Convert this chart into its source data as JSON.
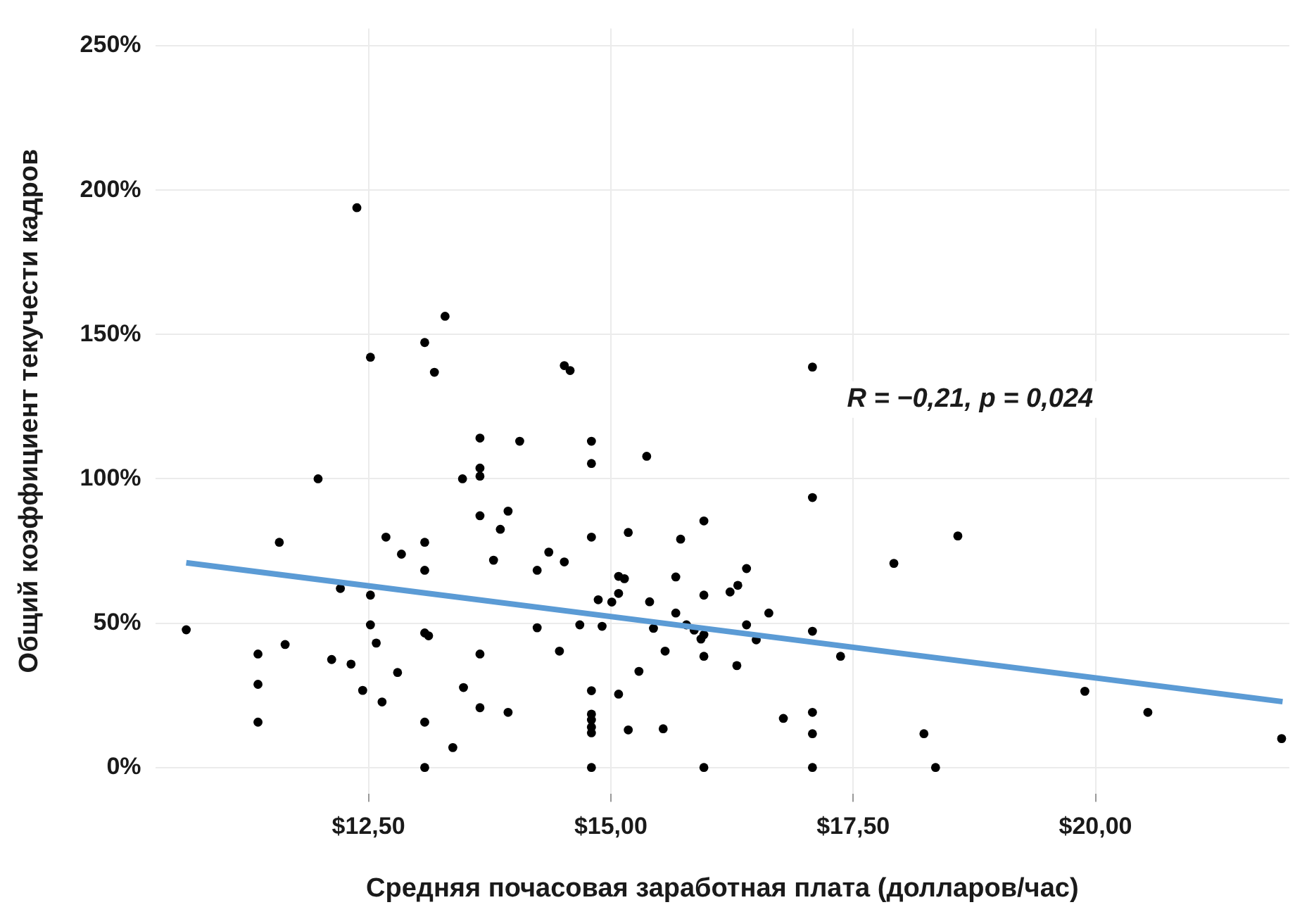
{
  "chart_data": {
    "type": "scatter",
    "xlabel": "Средняя почасовая заработная плата (долларов/час)",
    "ylabel": "Общий коэффициент текучести кадров",
    "annotations": [
      "R = −0,21, p = 0,024"
    ],
    "xlim": [
      10.3,
      22.0
    ],
    "ylim": [
      -9,
      256
    ],
    "xticks": [
      {
        "value": 12.5,
        "label": "$12,50"
      },
      {
        "value": 15,
        "label": "$15,00"
      },
      {
        "value": 17.5,
        "label": "$17,50"
      },
      {
        "value": 20,
        "label": "$20,00"
      }
    ],
    "yticks": [
      {
        "value": 0,
        "label": "0%"
      },
      {
        "value": 50,
        "label": "50%"
      },
      {
        "value": 100,
        "label": "100%"
      },
      {
        "value": 150,
        "label": "150%"
      },
      {
        "value": 200,
        "label": "200%"
      },
      {
        "value": 250,
        "label": "250%"
      }
    ],
    "grid": true,
    "marker": "circle",
    "series": [
      {
        "color": "#000000",
        "x": [
          12.38,
          13.29,
          13.08,
          12.52,
          13.18,
          13.65,
          14.06,
          13.65,
          13.65,
          11.98,
          13.47,
          14.52,
          14.58,
          17.08,
          14.8,
          14.8,
          15.37,
          11.58,
          12.68,
          13.08,
          12.84,
          13.08,
          13.65,
          13.94,
          13.86,
          13.79,
          14.24,
          14.36,
          10.62,
          11.36,
          11.36,
          11.36,
          11.64,
          12.21,
          12.52,
          12.52,
          12.58,
          12.12,
          12.32,
          12.8,
          12.44,
          12.64,
          13.08,
          13.12,
          13.08,
          13.08,
          13.37,
          13.65,
          13.48,
          13.65,
          13.94,
          14.24,
          15.96,
          14.8,
          15.18,
          15.72,
          14.52,
          15.67,
          15.08,
          15.14,
          15.08,
          14.87,
          15.01,
          15.4,
          15.96,
          16.23,
          16.31,
          16.4,
          17.08,
          17.92,
          14.68,
          14.91,
          14.47,
          15.44,
          15.67,
          15.78,
          15.86,
          15.96,
          15.93,
          15.56,
          15.96,
          16.4,
          16.63,
          16.5,
          16.3,
          17.08,
          17.37,
          15.29,
          14.8,
          15.08,
          14.8,
          14.8,
          14.8,
          14.8,
          15.18,
          15.54,
          16.78,
          17.08,
          17.08,
          18.23,
          14.8,
          15.96,
          17.08,
          18.58,
          18.35,
          19.89,
          20.54,
          21.92
        ],
        "values": [
          193.9,
          156.3,
          147.2,
          142.1,
          136.9,
          114.1,
          113,
          103.7,
          100.9,
          100,
          100,
          139.2,
          137.5,
          138.7,
          113,
          105.3,
          107.8,
          78,
          79.8,
          78,
          73.9,
          68.3,
          87.2,
          88.8,
          82.5,
          71.8,
          68.3,
          74.6,
          47.7,
          39.3,
          28.8,
          15.7,
          42.6,
          62,
          59.7,
          49.4,
          43.1,
          37.4,
          35.8,
          32.9,
          26.7,
          22.7,
          46.6,
          45.6,
          15.7,
          0,
          6.9,
          39.3,
          27.7,
          20.7,
          19.1,
          48.4,
          85.4,
          79.8,
          81.4,
          79.1,
          71.2,
          66,
          66.2,
          65.4,
          60.3,
          58.1,
          57.3,
          57.4,
          59.7,
          60.8,
          63.1,
          68.9,
          93.5,
          70.7,
          49.4,
          48.9,
          40.3,
          48.2,
          53.5,
          49.4,
          47.6,
          46,
          44.5,
          40.3,
          38.5,
          49.4,
          53.5,
          44.2,
          35.3,
          47.2,
          38.5,
          33.3,
          26.6,
          25.4,
          18.5,
          16.5,
          14,
          12,
          13,
          13.4,
          17,
          19.1,
          11.7,
          11.7,
          0,
          0,
          0,
          80.2,
          0,
          26.4,
          19.1,
          10
        ]
      },
      {
        "type": "line",
        "marker": "none",
        "color": "#5b9bd5",
        "x": [
          10.62,
          21.93
        ],
        "values": [
          70.9,
          22.8
        ]
      }
    ]
  }
}
